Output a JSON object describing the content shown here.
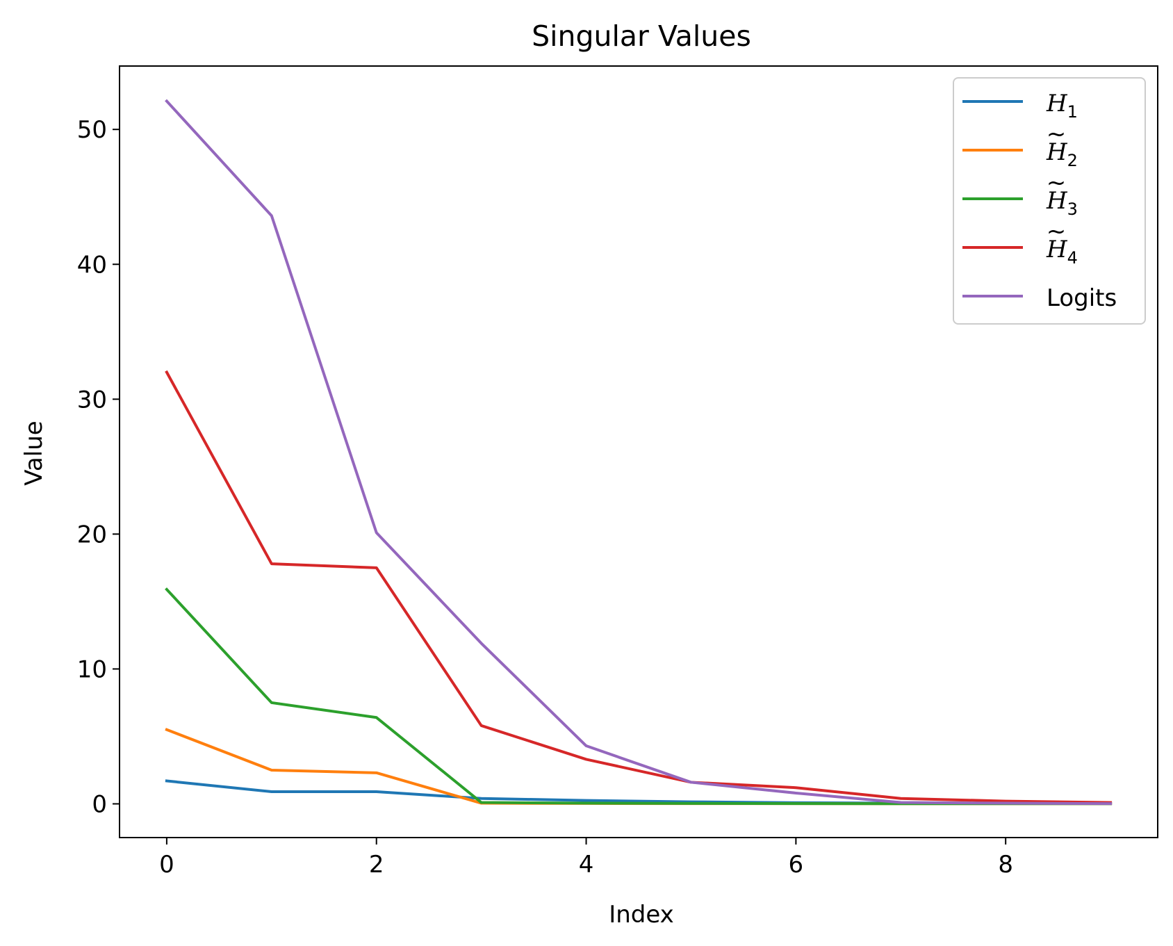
{
  "chart_data": {
    "type": "line",
    "title": "Singular Values",
    "xlabel": "Index",
    "ylabel": "Value",
    "xlim": [
      -0.45,
      9.45
    ],
    "ylim": [
      -2.5,
      54.7
    ],
    "x_ticks": [
      0,
      2,
      4,
      6,
      8
    ],
    "y_ticks": [
      0,
      10,
      20,
      30,
      40,
      50
    ],
    "grid": false,
    "legend_position": "top-right",
    "x": [
      0,
      1,
      2,
      3,
      4,
      5,
      6,
      7,
      8,
      9
    ],
    "series": [
      {
        "name": "H_1",
        "legend_base": "H",
        "legend_sub": "1",
        "legend_tilde": false,
        "color": "#1f77b4",
        "values": [
          1.7,
          0.9,
          0.9,
          0.4,
          0.25,
          0.15,
          0.08,
          0.05,
          0.03,
          0.02
        ]
      },
      {
        "name": "H̃_2",
        "legend_base": "H",
        "legend_sub": "2",
        "legend_tilde": true,
        "color": "#ff7f0e",
        "values": [
          5.5,
          2.5,
          2.3,
          0.05,
          0.03,
          0.02,
          0.02,
          0.01,
          0.01,
          0.01
        ]
      },
      {
        "name": "H̃_3",
        "legend_base": "H",
        "legend_sub": "3",
        "legend_tilde": true,
        "color": "#2ca02c",
        "values": [
          15.9,
          7.5,
          6.4,
          0.1,
          0.05,
          0.03,
          0.02,
          0.01,
          0.01,
          0.01
        ]
      },
      {
        "name": "H̃_4",
        "legend_base": "H",
        "legend_sub": "4",
        "legend_tilde": true,
        "color": "#d62728",
        "values": [
          32.0,
          17.8,
          17.5,
          5.8,
          3.3,
          1.6,
          1.2,
          0.4,
          0.2,
          0.1
        ]
      },
      {
        "name": "Logits",
        "legend_base": "Logits",
        "legend_sub": "",
        "legend_tilde": false,
        "color": "#9467bd",
        "values": [
          52.1,
          43.6,
          20.1,
          11.9,
          4.3,
          1.6,
          0.8,
          0.1,
          0.05,
          0.02
        ]
      }
    ]
  }
}
